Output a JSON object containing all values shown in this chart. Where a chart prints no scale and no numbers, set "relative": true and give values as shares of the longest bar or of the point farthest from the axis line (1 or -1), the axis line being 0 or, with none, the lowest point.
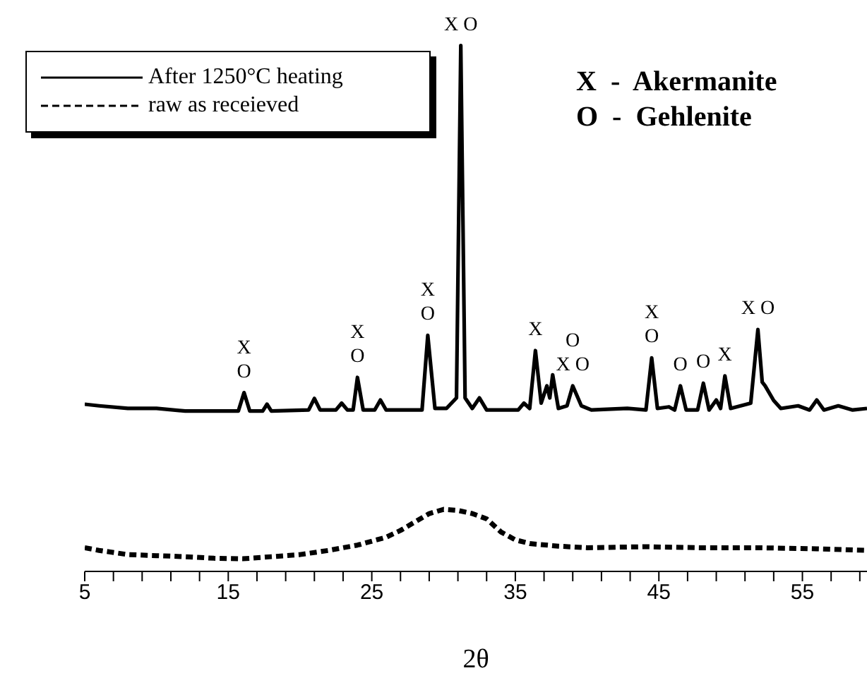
{
  "chart_data": {
    "type": "line",
    "xlabel": "2θ",
    "relative": true,
    "legend": "top left",
    "marker": "none",
    "grid": false,
    "xlim": [
      5,
      59.5
    ],
    "xticks": [
      5,
      {
        "value": 7,
        "label": null
      },
      {
        "value": 9,
        "label": null
      },
      {
        "value": 11,
        "label": null
      },
      {
        "value": 13,
        "label": null
      },
      15,
      {
        "value": 17,
        "label": null
      },
      {
        "value": 19,
        "label": null
      },
      {
        "value": 21,
        "label": null
      },
      {
        "value": 23,
        "label": null
      },
      25,
      {
        "value": 27,
        "label": null
      },
      {
        "value": 29,
        "label": null
      },
      {
        "value": 31,
        "label": null
      },
      {
        "value": 33,
        "label": null
      },
      35,
      {
        "value": 37,
        "label": null
      },
      {
        "value": 39,
        "label": null
      },
      {
        "value": 41,
        "label": null
      },
      {
        "value": 43,
        "label": null
      },
      45,
      {
        "value": 47,
        "label": null
      },
      {
        "value": 49,
        "label": null
      },
      {
        "value": 51,
        "label": null
      },
      {
        "value": 53,
        "label": null
      },
      55,
      {
        "value": 57,
        "label": null
      },
      {
        "value": 59,
        "label": null
      }
    ],
    "series": [
      {
        "name": "After 1250°C heating",
        "color": "#000000",
        "line_style": "solid",
        "x": [
          5,
          6,
          8,
          10,
          12,
          14,
          15.7,
          16.1,
          16.5,
          17.4,
          17.7,
          18,
          20.6,
          21.0,
          21.4,
          22.5,
          22.9,
          23.3,
          23.7,
          24.0,
          24.4,
          25.2,
          25.6,
          26,
          28.5,
          28.9,
          29.4,
          30.2,
          30.9,
          31.2,
          31.5,
          32.0,
          32.5,
          33,
          35.2,
          35.6,
          36.0,
          36.4,
          36.8,
          37.2,
          37.4,
          37.6,
          38.0,
          38.6,
          39.0,
          39.6,
          40.3,
          42.8,
          44.1,
          44.5,
          44.9,
          45.7,
          46.1,
          46.5,
          46.9,
          47.7,
          48.1,
          48.5,
          49.0,
          49.3,
          49.6,
          50.0,
          51.4,
          51.9,
          52.2,
          52.4,
          53.0,
          53.5,
          54.7,
          55.5,
          56.0,
          56.5,
          57.5,
          58.5,
          59.5
        ],
        "values": [
          0.318,
          0.315,
          0.31,
          0.31,
          0.305,
          0.305,
          0.305,
          0.34,
          0.305,
          0.305,
          0.318,
          0.305,
          0.307,
          0.329,
          0.307,
          0.307,
          0.32,
          0.307,
          0.307,
          0.369,
          0.307,
          0.307,
          0.326,
          0.307,
          0.307,
          0.449,
          0.31,
          0.31,
          0.33,
          1.0,
          0.33,
          0.31,
          0.33,
          0.307,
          0.307,
          0.32,
          0.31,
          0.42,
          0.32,
          0.353,
          0.33,
          0.374,
          0.31,
          0.315,
          0.353,
          0.315,
          0.307,
          0.31,
          0.307,
          0.406,
          0.31,
          0.313,
          0.307,
          0.353,
          0.307,
          0.307,
          0.358,
          0.307,
          0.326,
          0.31,
          0.372,
          0.31,
          0.32,
          0.46,
          0.36,
          0.353,
          0.325,
          0.31,
          0.315,
          0.307,
          0.326,
          0.307,
          0.315,
          0.307,
          0.31
        ]
      },
      {
        "name": "raw as receieved",
        "color": "#000000",
        "line_style": "dashed",
        "x": [
          5,
          6,
          8,
          10,
          12,
          14,
          16,
          18,
          20,
          22,
          24,
          26,
          27,
          28,
          29,
          30,
          31,
          32,
          33,
          34,
          35,
          36,
          38,
          40,
          44,
          48,
          52,
          56,
          59.5
        ],
        "values": [
          0.045,
          0.04,
          0.032,
          0.03,
          0.028,
          0.025,
          0.024,
          0.028,
          0.032,
          0.04,
          0.05,
          0.065,
          0.078,
          0.094,
          0.11,
          0.118,
          0.116,
          0.11,
          0.1,
          0.075,
          0.06,
          0.053,
          0.048,
          0.045,
          0.047,
          0.045,
          0.045,
          0.043,
          0.04
        ]
      }
    ],
    "annotations": [
      "X  -  Akermanite",
      "O  -  Gehlenite",
      {
        "text": "X",
        "x": 16.1,
        "y": 0.34
      },
      {
        "text": "O",
        "x": 16.1,
        "y": 0.34
      },
      {
        "text": "X",
        "x": 24.0,
        "y": 0.369
      },
      {
        "text": "O",
        "x": 24.0,
        "y": 0.369
      },
      {
        "text": "X",
        "x": 28.9,
        "y": 0.449
      },
      {
        "text": "O",
        "x": 28.9,
        "y": 0.449
      },
      {
        "text": "X O",
        "x": 31.2,
        "y": 1.0
      },
      {
        "text": "X",
        "x": 36.4,
        "y": 0.42
      },
      {
        "text": "O",
        "x": 39.0,
        "y": 0.353
      },
      {
        "text": "X O",
        "x": 39.0,
        "y": 0.353
      },
      {
        "text": "X",
        "x": 44.5,
        "y": 0.406
      },
      {
        "text": "O",
        "x": 44.5,
        "y": 0.406
      },
      {
        "text": "O",
        "x": 46.5,
        "y": 0.353
      },
      {
        "text": "O",
        "x": 48.1,
        "y": 0.358
      },
      {
        "text": "X",
        "x": 49.6,
        "y": 0.372
      },
      {
        "text": "X   O",
        "x": 51.9,
        "y": 0.46
      }
    ]
  }
}
